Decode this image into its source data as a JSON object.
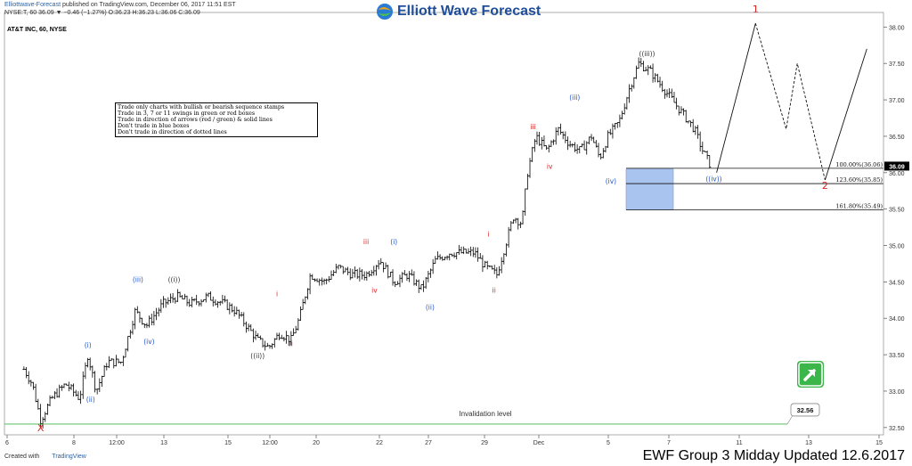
{
  "header": {
    "publisher": "Elliottwave-Forecast",
    "published_text": " published on TradingView.com, December 06, 2017 11:51 EST",
    "ohlc": "NYSE:T, 60  36.09  ▼ −0.46 (−1.27%)  O:36.23  H:36.23  L:36.06  C:36.09"
  },
  "logo": {
    "text": "Elliott Wave Forecast"
  },
  "symbol_label": "AT&T INC, 60, NYSE",
  "rules": [
    "Trade only charts with bullish or bearish sequence stamps",
    "Trade in 3, 7 or 11 swings in green or red boxes",
    "Trade in direction of arrows (red / green) & solid lines",
    "Don't trade in blue boxes",
    "Don't trade in direction of dotted lines"
  ],
  "footer": {
    "created_with": "Created with",
    "tradingview": "TradingView",
    "title": "EWF Group 3 Midday Updated 12.6.2017"
  },
  "colors": {
    "candle": "#000000",
    "blue_label": "#2255cc",
    "red_label": "#dd2222",
    "dark_label": "#333333",
    "blue_box": "#a9c4ee",
    "invalidation": "#3cb54a",
    "current_price_bg": "#000000"
  },
  "chart_data": {
    "type": "line",
    "ylim": [
      32.4,
      38.2
    ],
    "y_ticks": [
      32.5,
      33.0,
      33.5,
      34.0,
      34.5,
      35.0,
      35.5,
      36.0,
      36.5,
      37.0,
      37.5,
      38.0
    ],
    "x_ticks": [
      "6",
      "8",
      "12:00",
      "13",
      "15",
      "12:00",
      "20",
      "22",
      "27",
      "29",
      "Dec",
      "5",
      "7",
      "11",
      "13",
      "15"
    ],
    "current_price": "36.09",
    "invalidation": {
      "label": "Invalidation level",
      "value": "32.56"
    },
    "fib_levels": [
      {
        "label": "100.00%(36.06)",
        "value": 36.06
      },
      {
        "label": "123.60%(35.85)",
        "value": 35.85
      },
      {
        "label": "161.80%(35.49)",
        "value": 35.49
      }
    ],
    "blue_box": {
      "y_top": 36.05,
      "y_bottom": 35.49
    },
    "price_path": [
      [
        6.0,
        33.3
      ],
      [
        6.3,
        33.1
      ],
      [
        6.6,
        32.6
      ],
      [
        7.0,
        32.9
      ],
      [
        7.5,
        33.1
      ],
      [
        8.0,
        32.9
      ],
      [
        8.3,
        33.5
      ],
      [
        8.6,
        33.0
      ],
      [
        9.0,
        33.4
      ],
      [
        9.5,
        33.4
      ],
      [
        10.0,
        34.1
      ],
      [
        10.4,
        33.9
      ],
      [
        11.0,
        34.2
      ],
      [
        11.5,
        34.3
      ],
      [
        12.0,
        34.2
      ],
      [
        12.6,
        34.3
      ],
      [
        13.2,
        34.2
      ],
      [
        13.6,
        34.1
      ],
      [
        14.0,
        33.9
      ],
      [
        14.4,
        33.7
      ],
      [
        14.8,
        33.6
      ],
      [
        15.2,
        33.8
      ],
      [
        15.6,
        33.7
      ],
      [
        15.9,
        34.0
      ],
      [
        16.3,
        34.6
      ],
      [
        16.8,
        34.5
      ],
      [
        17.3,
        34.7
      ],
      [
        17.8,
        34.6
      ],
      [
        18.3,
        34.6
      ],
      [
        18.8,
        34.8
      ],
      [
        19.3,
        34.5
      ],
      [
        19.8,
        34.6
      ],
      [
        20.3,
        34.4
      ],
      [
        20.8,
        34.8
      ],
      [
        21.3,
        34.9
      ],
      [
        21.8,
        34.9
      ],
      [
        22.2,
        34.9
      ],
      [
        22.6,
        34.7
      ],
      [
        23.0,
        34.6
      ],
      [
        23.3,
        35.0
      ],
      [
        23.6,
        35.4
      ],
      [
        23.9,
        35.3
      ],
      [
        24.1,
        36.0
      ],
      [
        24.4,
        36.5
      ],
      [
        24.8,
        36.3
      ],
      [
        25.2,
        36.6
      ],
      [
        25.6,
        36.4
      ],
      [
        26.0,
        36.3
      ],
      [
        26.4,
        36.5
      ],
      [
        26.7,
        36.2
      ],
      [
        27.0,
        36.5
      ],
      [
        27.4,
        36.7
      ],
      [
        27.8,
        37.2
      ],
      [
        28.1,
        37.5
      ],
      [
        28.5,
        37.4
      ],
      [
        28.9,
        37.2
      ],
      [
        29.3,
        37.0
      ],
      [
        29.7,
        36.8
      ],
      [
        30.1,
        36.6
      ],
      [
        30.4,
        36.3
      ],
      [
        30.7,
        36.09
      ]
    ],
    "projection": {
      "solid": [
        [
          30.9,
          36.0
        ],
        [
          32.3,
          38.05
        ]
      ],
      "dashed": [
        [
          32.3,
          38.05
        ],
        [
          33.4,
          36.6
        ],
        [
          33.8,
          37.5
        ],
        [
          34.8,
          35.9
        ]
      ],
      "solid2": [
        [
          34.8,
          35.9
        ],
        [
          36.3,
          37.7
        ]
      ]
    },
    "wave_labels": [
      {
        "text": "X",
        "x": 6.6,
        "y": 32.45,
        "color": "red"
      },
      {
        "text": "(i)",
        "x": 8.3,
        "y": 33.6,
        "color": "blue"
      },
      {
        "text": "(ii)",
        "x": 8.4,
        "y": 32.85,
        "color": "blue"
      },
      {
        "text": "(iii)",
        "x": 10.1,
        "y": 34.5,
        "color": "blue"
      },
      {
        "text": "(iv)",
        "x": 10.5,
        "y": 33.65,
        "color": "blue"
      },
      {
        "text": "((i))",
        "x": 11.4,
        "y": 34.5,
        "color": "dark"
      },
      {
        "text": "((ii))",
        "x": 14.4,
        "y": 33.45,
        "color": "dark"
      },
      {
        "text": "i",
        "x": 15.1,
        "y": 34.3,
        "color": "red"
      },
      {
        "text": "ii",
        "x": 15.6,
        "y": 33.62,
        "color": "red"
      },
      {
        "text": "iii",
        "x": 18.3,
        "y": 35.02,
        "color": "red"
      },
      {
        "text": "iv",
        "x": 18.6,
        "y": 34.35,
        "color": "red"
      },
      {
        "text": "(i)",
        "x": 19.3,
        "y": 35.02,
        "color": "blue"
      },
      {
        "text": "(ii)",
        "x": 20.6,
        "y": 34.12,
        "color": "blue"
      },
      {
        "text": "i",
        "x": 22.7,
        "y": 35.12,
        "color": "red"
      },
      {
        "text": "ii",
        "x": 22.9,
        "y": 34.35,
        "color": "red"
      },
      {
        "text": "iii",
        "x": 24.3,
        "y": 36.6,
        "color": "red"
      },
      {
        "text": "iv",
        "x": 24.9,
        "y": 36.05,
        "color": "red"
      },
      {
        "text": "(iii)",
        "x": 25.8,
        "y": 37.0,
        "color": "blue"
      },
      {
        "text": "(iv)",
        "x": 27.1,
        "y": 35.85,
        "color": "blue"
      },
      {
        "text": "((iii))",
        "x": 28.4,
        "y": 37.6,
        "color": "dark"
      },
      {
        "text": "((iv))",
        "x": 30.8,
        "y": 35.88,
        "color": "blue"
      },
      {
        "text": "1",
        "x": 32.3,
        "y": 38.2,
        "color": "red"
      },
      {
        "text": "2",
        "x": 34.8,
        "y": 35.78,
        "color": "red"
      }
    ]
  }
}
